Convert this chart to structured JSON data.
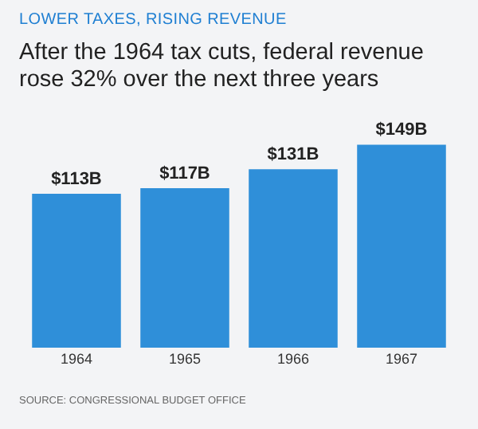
{
  "chart_data": {
    "type": "bar",
    "subtitle": "LOWER TAXES, RISING REVENUE",
    "title": "After the 1964 tax cuts, federal revenue rose 32% over the next three years",
    "categories": [
      "1964",
      "1965",
      "1966",
      "1967"
    ],
    "values": [
      113,
      117,
      131,
      149
    ],
    "value_labels": [
      "$113B",
      "$117B",
      "$131B",
      "$149B"
    ],
    "color": "#2f8fd9",
    "grid": false,
    "legend": false,
    "annotations": [
      "SOURCE: CONGRESSIONAL BUDGET OFFICE"
    ]
  }
}
